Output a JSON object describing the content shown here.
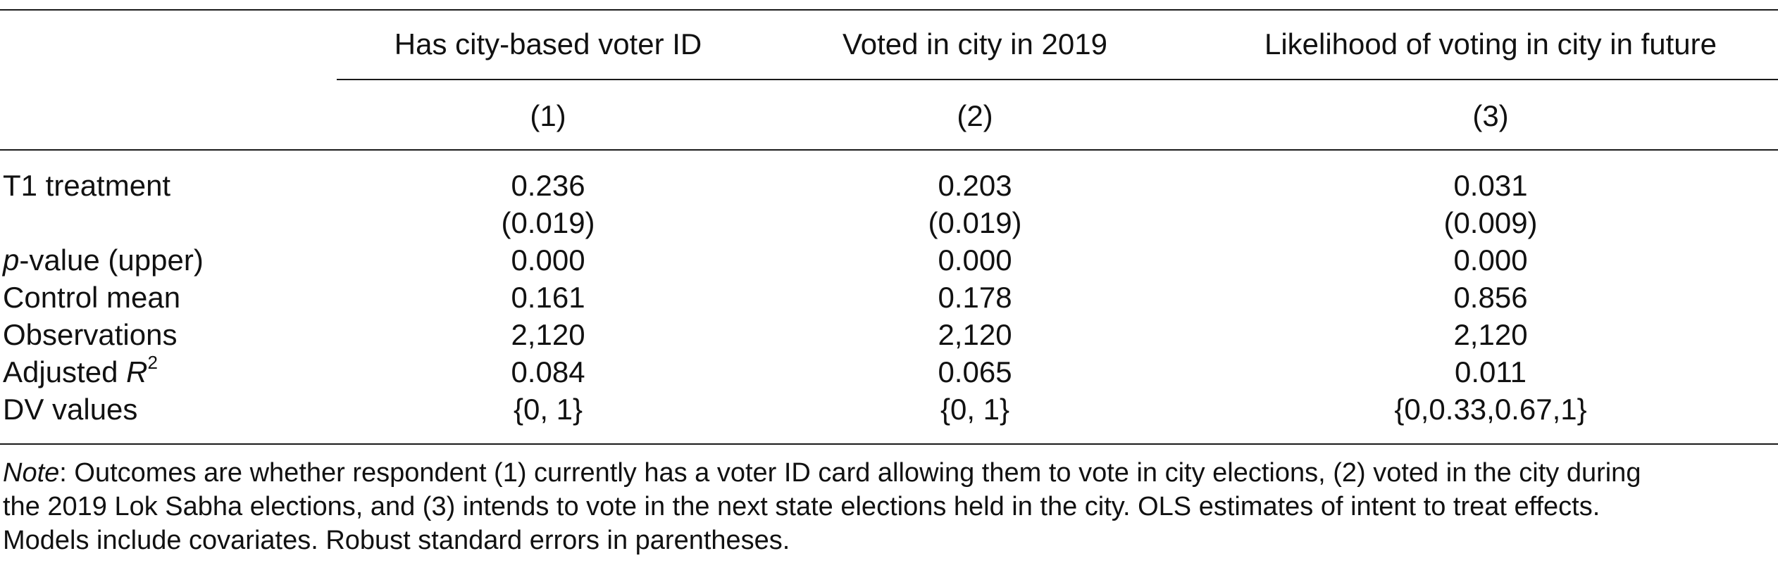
{
  "table": {
    "headers": [
      "Has city-based voter ID",
      "Voted in city in 2019",
      "Likelihood of voting in city in future"
    ],
    "numbers": [
      "(1)",
      "(2)",
      "(3)"
    ],
    "rows": [
      {
        "label": "T1 treatment",
        "values": [
          "0.236",
          "0.203",
          "0.031"
        ]
      },
      {
        "label": "",
        "values": [
          "(0.019)",
          "(0.019)",
          "(0.009)"
        ]
      },
      {
        "label_italic": "p",
        "label_rest": "-value (upper)",
        "values": [
          "0.000",
          "0.000",
          "0.000"
        ]
      },
      {
        "label": "Control mean",
        "values": [
          "0.161",
          "0.178",
          "0.856"
        ]
      },
      {
        "label": "Observations",
        "values": [
          "2,120",
          "2,120",
          "2,120"
        ]
      },
      {
        "label_rest": "Adjusted ",
        "label_italic": "R",
        "label_sup": "2",
        "values": [
          "0.084",
          "0.065",
          "0.011"
        ]
      },
      {
        "label": "DV values",
        "values": [
          "{0, 1}",
          "{0, 1}",
          "{0,0.33,0.67,1}"
        ]
      }
    ]
  },
  "note": {
    "label": "Note",
    "line1": ": Outcomes are whether respondent (1) currently has a voter ID card allowing them to vote in city elections, (2) voted in the city during",
    "line2": "the 2019 Lok Sabha elections, and (3) intends to vote in the next state elections held in the city. OLS estimates of intent to treat effects.",
    "line3": "Models include covariates. Robust standard errors in parentheses."
  }
}
